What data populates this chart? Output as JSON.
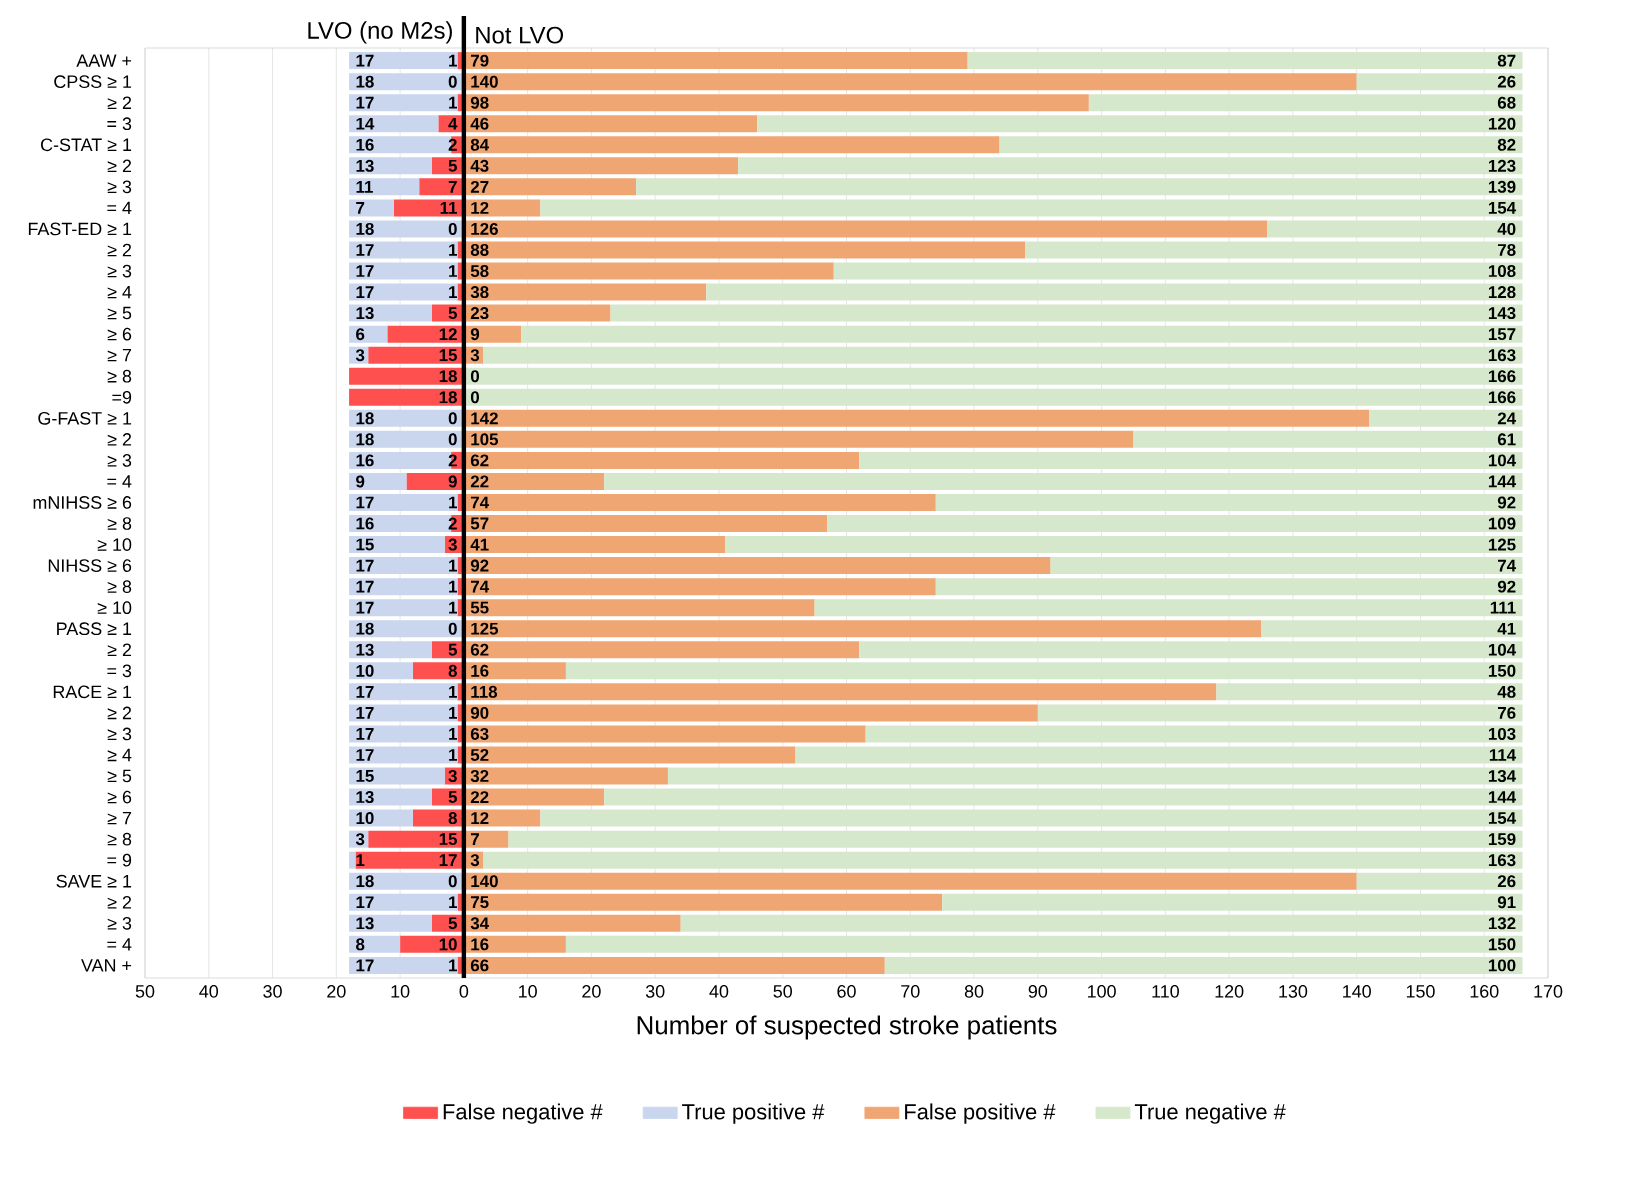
{
  "chart_data": {
    "type": "bar",
    "orientation": "horizontal",
    "categories": [
      "AAW +",
      "CPSS ≥ 1",
      "≥ 2",
      "= 3",
      "C-STAT ≥ 1",
      "≥ 2",
      "≥ 3",
      "= 4",
      "FAST-ED ≥ 1",
      "≥ 2",
      "≥ 3",
      "≥ 4",
      "≥ 5",
      "≥ 6",
      "≥ 7",
      "≥ 8",
      "=9",
      "G-FAST ≥ 1",
      "≥ 2",
      "≥ 3",
      "= 4",
      "mNIHSS ≥ 6",
      "≥ 8",
      "≥ 10",
      "NIHSS ≥ 6",
      "≥ 8",
      "≥ 10",
      "PASS ≥ 1",
      "≥ 2",
      "= 3",
      "RACE ≥ 1",
      "≥ 2",
      "≥ 3",
      "≥ 4",
      "≥ 5",
      "≥ 6",
      "≥ 7",
      "≥ 8",
      "= 9",
      "SAVE ≥ 1",
      "≥ 2",
      "≥ 3",
      "= 4",
      "VAN +"
    ],
    "series": [
      {
        "name": "False negative #",
        "color": "#ff5050",
        "values": [
          1,
          0,
          1,
          4,
          2,
          5,
          7,
          11,
          0,
          1,
          1,
          1,
          5,
          12,
          15,
          18,
          18,
          0,
          0,
          2,
          9,
          1,
          2,
          3,
          1,
          1,
          1,
          0,
          5,
          8,
          1,
          1,
          1,
          1,
          3,
          5,
          8,
          15,
          17,
          0,
          1,
          5,
          10,
          1
        ],
        "base": [
          -1,
          null,
          -1,
          -4,
          -2,
          -5,
          -7,
          -11,
          null,
          -1,
          -1,
          -1,
          -5,
          -12,
          -15,
          -18,
          -18,
          null,
          null,
          -2,
          -9,
          -1,
          -2,
          -3,
          -1,
          -1,
          -1,
          null,
          -5,
          -8,
          -1,
          -1,
          -1,
          -1,
          -3,
          -5,
          -8,
          -15,
          -17,
          null,
          -1,
          -5,
          -10,
          -1
        ],
        "value_labels": [
          "1",
          "0",
          "1",
          "4",
          "2",
          "5",
          "7",
          "11",
          "0",
          "1",
          "1",
          "1",
          "5",
          "12",
          "15",
          "18",
          "18",
          "0",
          "0",
          "2",
          "9",
          "1",
          "2",
          "3",
          "1",
          "1",
          "1",
          "0",
          "5",
          "8",
          "1",
          "1",
          "1",
          "1",
          "3",
          "5",
          "8",
          "15",
          "17",
          "0",
          "1",
          "5",
          "10",
          "1"
        ]
      },
      {
        "name": "True positive #",
        "color": "#c9d6ee",
        "values": [
          17,
          18,
          17,
          14,
          16,
          13,
          11,
          7,
          18,
          17,
          17,
          17,
          13,
          6,
          3,
          0,
          0,
          18,
          18,
          16,
          9,
          17,
          16,
          15,
          17,
          17,
          17,
          18,
          13,
          10,
          17,
          17,
          17,
          17,
          15,
          13,
          10,
          3,
          1,
          18,
          17,
          13,
          8,
          17
        ],
        "base": [
          -18,
          -18,
          -18,
          -18,
          -18,
          -18,
          -18,
          -18,
          -18,
          -18,
          -18,
          -18,
          -18,
          -18,
          -18,
          null,
          null,
          -18,
          -18,
          -18,
          -18,
          -18,
          -18,
          -18,
          -18,
          -18,
          -18,
          -18,
          -18,
          -18,
          -18,
          -18,
          -18,
          -18,
          -18,
          -18,
          -18,
          -18,
          -18,
          -18,
          -18,
          -18,
          -18,
          -18
        ],
        "value_labels": [
          "17",
          "18",
          "17",
          "14",
          "16",
          "13",
          "11",
          "7",
          "18",
          "17",
          "17",
          "17",
          "13",
          "6",
          "3",
          null,
          null,
          "18",
          "18",
          "16",
          "9",
          "17",
          "16",
          "15",
          "17",
          "17",
          "17",
          "18",
          "13",
          "10",
          "17",
          "17",
          "17",
          "17",
          "15",
          "13",
          "10",
          "3",
          "1",
          "18",
          "17",
          "13",
          "8",
          "17"
        ]
      },
      {
        "name": "False positive #",
        "color": "#f0a672",
        "values": [
          79,
          140,
          98,
          46,
          84,
          43,
          27,
          12,
          126,
          88,
          58,
          38,
          23,
          9,
          3,
          0,
          0,
          142,
          105,
          62,
          22,
          74,
          57,
          41,
          92,
          74,
          55,
          125,
          62,
          16,
          118,
          90,
          63,
          52,
          32,
          22,
          12,
          7,
          3,
          140,
          75,
          34,
          16,
          66
        ],
        "base": [
          0,
          0,
          0,
          0,
          0,
          0,
          0,
          0,
          0,
          0,
          0,
          0,
          0,
          0,
          0,
          null,
          null,
          0,
          0,
          0,
          0,
          0,
          0,
          0,
          0,
          0,
          0,
          0,
          0,
          0,
          0,
          0,
          0,
          0,
          0,
          0,
          0,
          0,
          0,
          0,
          0,
          0,
          0,
          0
        ],
        "value_labels": [
          "79",
          "140",
          "98",
          "46",
          "84",
          "43",
          "27",
          "12",
          "126",
          "88",
          "58",
          "38",
          "23",
          "9",
          "3",
          "0",
          "0",
          "142",
          "105",
          "62",
          "22",
          "74",
          "57",
          "41",
          "92",
          "74",
          "55",
          "125",
          "62",
          "16",
          "118",
          "90",
          "63",
          "52",
          "32",
          "22",
          "12",
          "7",
          "3",
          "140",
          "75",
          "34",
          "16",
          "66"
        ]
      },
      {
        "name": "True negative #",
        "color": "#d6e8cc",
        "values": [
          87,
          26,
          68,
          120,
          82,
          123,
          139,
          154,
          40,
          78,
          108,
          128,
          143,
          157,
          163,
          166,
          166,
          24,
          61,
          104,
          144,
          92,
          109,
          125,
          74,
          92,
          111,
          41,
          104,
          150,
          48,
          76,
          103,
          114,
          134,
          144,
          154,
          159,
          163,
          26,
          91,
          132,
          150,
          100
        ],
        "base": [
          79,
          140,
          98,
          46,
          84,
          43,
          27,
          12,
          126,
          88,
          58,
          38,
          23,
          9,
          3,
          0,
          0,
          142,
          105,
          62,
          22,
          74,
          57,
          41,
          92,
          74,
          55,
          125,
          62,
          16,
          118,
          90,
          63,
          52,
          32,
          22,
          12,
          7,
          3,
          140,
          75,
          34,
          16,
          66
        ],
        "value_labels": [
          "87",
          "26",
          "68",
          "120",
          "82",
          "123",
          "139",
          "154",
          "40",
          "78",
          "108",
          "128",
          "143",
          "157",
          "163",
          "166",
          "166",
          "24",
          "61",
          "104",
          "144",
          "92",
          "109",
          "125",
          "74",
          "92",
          "111",
          "41",
          "104",
          "150",
          "48",
          "76",
          "103",
          "114",
          "134",
          "144",
          "154",
          "159",
          "163",
          "26",
          "91",
          "132",
          "150",
          "100"
        ]
      }
    ],
    "xlim": [
      -50,
      170
    ],
    "xticks": [
      {
        "value": -50,
        "label": "50"
      },
      {
        "value": -40,
        "label": "40"
      },
      {
        "value": -30,
        "label": "30"
      },
      {
        "value": -20,
        "label": "20"
      },
      {
        "value": -10,
        "label": "10"
      },
      0,
      10,
      20,
      30,
      40,
      50,
      60,
      70,
      80,
      90,
      100,
      110,
      120,
      130,
      140,
      150,
      160,
      170
    ],
    "xlabel": "Number of suspected stroke patients",
    "annotations": [
      "LVO (no M2s)",
      "Not LVO"
    ],
    "ref_lines": [
      {
        "axis": "x",
        "value": 0,
        "color": "#000000"
      }
    ],
    "grid": "x",
    "legend": "bottom"
  }
}
